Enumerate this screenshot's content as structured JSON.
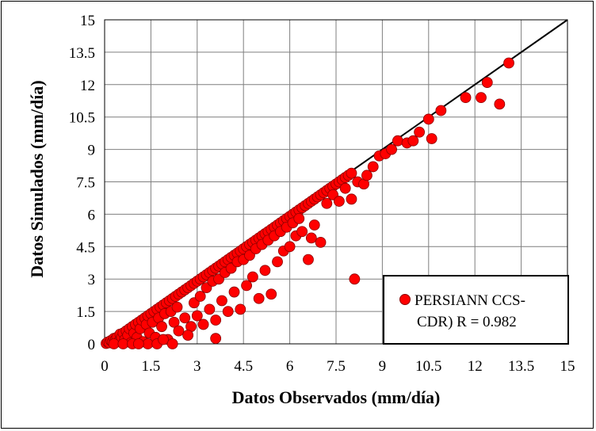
{
  "chart_data": {
    "type": "scatter",
    "xlabel": "Datos Observados (mm/día)",
    "ylabel": "Datos Simulados (mm/día)",
    "xlim": [
      0,
      15
    ],
    "ylim": [
      0,
      15
    ],
    "xticks": [
      "0",
      "1.5",
      "3",
      "4.5",
      "6",
      "7.5",
      "9",
      "10.5",
      "12",
      "13.5",
      "15"
    ],
    "yticks": [
      "0",
      "1.5",
      "3",
      "4.5",
      "6",
      "7.5",
      "9",
      "10.5",
      "12",
      "13.5",
      "15"
    ],
    "grid": true,
    "legend_position": "bottom-right",
    "reference_line": {
      "type": "1:1",
      "from": [
        0,
        0
      ],
      "to": [
        15,
        15
      ],
      "color": "#000000"
    },
    "series": [
      {
        "name": "PERSIANN CCS-CDR) R = 0.982",
        "color": "#ff0000",
        "edge_color": "#8b0000",
        "points": [
          [
            0.05,
            0.02
          ],
          [
            0.1,
            0.08
          ],
          [
            0.15,
            0.05
          ],
          [
            0.2,
            0.15
          ],
          [
            0.25,
            0.1
          ],
          [
            0.3,
            0.25
          ],
          [
            0.35,
            0.2
          ],
          [
            0.4,
            0.3
          ],
          [
            0.45,
            0.1
          ],
          [
            0.5,
            0.45
          ],
          [
            0.55,
            0.3
          ],
          [
            0.6,
            0.5
          ],
          [
            0.65,
            0.2
          ],
          [
            0.7,
            0.6
          ],
          [
            0.75,
            0.4
          ],
          [
            0.8,
            0.7
          ],
          [
            0.85,
            0.05
          ],
          [
            0.9,
            0.8
          ],
          [
            0.95,
            0.5
          ],
          [
            1.0,
            0.9
          ],
          [
            1.05,
            0.3
          ],
          [
            1.1,
            1.0
          ],
          [
            1.15,
            0.7
          ],
          [
            1.2,
            1.1
          ],
          [
            1.25,
            0.1
          ],
          [
            1.3,
            1.2
          ],
          [
            1.35,
            0.9
          ],
          [
            1.4,
            1.3
          ],
          [
            1.45,
            0.5
          ],
          [
            1.5,
            1.4
          ],
          [
            1.55,
            1.0
          ],
          [
            1.6,
            1.5
          ],
          [
            1.65,
            0.3
          ],
          [
            1.7,
            1.6
          ],
          [
            1.75,
            1.2
          ],
          [
            1.8,
            1.7
          ],
          [
            1.85,
            0.8
          ],
          [
            1.9,
            1.8
          ],
          [
            1.95,
            1.4
          ],
          [
            2.0,
            1.9
          ],
          [
            2.05,
            0.2
          ],
          [
            2.1,
            2.0
          ],
          [
            2.15,
            1.5
          ],
          [
            2.2,
            2.1
          ],
          [
            2.25,
            1.0
          ],
          [
            2.3,
            2.2
          ],
          [
            2.35,
            1.7
          ],
          [
            2.4,
            2.3
          ],
          [
            2.5,
            2.4
          ],
          [
            2.6,
            2.5
          ],
          [
            2.7,
            2.6
          ],
          [
            2.8,
            2.7
          ],
          [
            2.9,
            2.8
          ],
          [
            3.0,
            2.9
          ],
          [
            3.1,
            3.0
          ],
          [
            3.2,
            3.1
          ],
          [
            3.3,
            3.2
          ],
          [
            3.4,
            3.3
          ],
          [
            3.5,
            3.4
          ],
          [
            3.6,
            3.5
          ],
          [
            3.7,
            3.6
          ],
          [
            3.8,
            3.7
          ],
          [
            3.9,
            3.8
          ],
          [
            4.0,
            3.9
          ],
          [
            4.1,
            4.0
          ],
          [
            4.2,
            4.1
          ],
          [
            4.3,
            4.2
          ],
          [
            4.4,
            4.3
          ],
          [
            4.5,
            4.4
          ],
          [
            4.6,
            4.5
          ],
          [
            4.7,
            4.6
          ],
          [
            4.8,
            4.7
          ],
          [
            4.9,
            4.8
          ],
          [
            5.0,
            4.9
          ],
          [
            5.1,
            5.0
          ],
          [
            5.2,
            5.1
          ],
          [
            5.3,
            5.2
          ],
          [
            5.4,
            5.3
          ],
          [
            5.5,
            5.4
          ],
          [
            5.6,
            5.5
          ],
          [
            5.7,
            5.6
          ],
          [
            5.8,
            5.7
          ],
          [
            5.9,
            5.8
          ],
          [
            6.0,
            5.9
          ],
          [
            6.1,
            6.0
          ],
          [
            6.2,
            6.1
          ],
          [
            6.3,
            6.2
          ],
          [
            6.4,
            6.3
          ],
          [
            6.5,
            6.4
          ],
          [
            6.6,
            6.5
          ],
          [
            6.7,
            6.6
          ],
          [
            6.8,
            6.7
          ],
          [
            6.9,
            6.8
          ],
          [
            7.0,
            6.9
          ],
          [
            7.1,
            7.0
          ],
          [
            7.2,
            7.1
          ],
          [
            7.3,
            7.2
          ],
          [
            7.4,
            7.3
          ],
          [
            7.5,
            7.4
          ],
          [
            7.6,
            7.5
          ],
          [
            7.7,
            7.6
          ],
          [
            7.8,
            7.7
          ],
          [
            7.9,
            7.8
          ],
          [
            8.0,
            7.9
          ],
          [
            2.6,
            1.2
          ],
          [
            2.8,
            0.8
          ],
          [
            2.9,
            1.9
          ],
          [
            3.0,
            1.3
          ],
          [
            3.1,
            2.2
          ],
          [
            3.2,
            0.9
          ],
          [
            3.3,
            2.6
          ],
          [
            3.4,
            1.6
          ],
          [
            3.5,
            2.9
          ],
          [
            3.6,
            1.1
          ],
          [
            3.7,
            3.0
          ],
          [
            3.8,
            2.0
          ],
          [
            3.9,
            3.3
          ],
          [
            4.0,
            1.5
          ],
          [
            4.1,
            3.5
          ],
          [
            4.2,
            2.4
          ],
          [
            4.3,
            3.8
          ],
          [
            4.4,
            1.6
          ],
          [
            4.5,
            3.9
          ],
          [
            4.6,
            2.7
          ],
          [
            4.7,
            4.1
          ],
          [
            4.8,
            3.1
          ],
          [
            4.9,
            4.4
          ],
          [
            5.0,
            2.1
          ],
          [
            5.1,
            4.6
          ],
          [
            5.2,
            3.4
          ],
          [
            5.3,
            4.8
          ],
          [
            5.4,
            2.3
          ],
          [
            5.5,
            5.0
          ],
          [
            5.6,
            3.8
          ],
          [
            5.7,
            5.2
          ],
          [
            5.8,
            4.3
          ],
          [
            5.9,
            5.4
          ],
          [
            6.0,
            4.5
          ],
          [
            6.1,
            5.6
          ],
          [
            6.2,
            5.0
          ],
          [
            6.3,
            5.8
          ],
          [
            6.4,
            5.2
          ],
          [
            6.6,
            3.9
          ],
          [
            6.7,
            4.9
          ],
          [
            6.8,
            5.5
          ],
          [
            7.0,
            4.7
          ],
          [
            7.2,
            6.5
          ],
          [
            7.4,
            6.9
          ],
          [
            7.6,
            6.6
          ],
          [
            7.8,
            7.2
          ],
          [
            8.0,
            6.7
          ],
          [
            8.2,
            7.5
          ],
          [
            8.4,
            7.4
          ],
          [
            8.5,
            7.8
          ],
          [
            8.7,
            8.2
          ],
          [
            8.9,
            8.7
          ],
          [
            8.1,
            3.0
          ],
          [
            3.6,
            0.25
          ],
          [
            2.2,
            0.0
          ],
          [
            1.4,
            0.0
          ],
          [
            9.1,
            8.8
          ],
          [
            9.3,
            9.0
          ],
          [
            9.5,
            9.4
          ],
          [
            9.8,
            9.3
          ],
          [
            10.0,
            9.4
          ],
          [
            10.2,
            9.8
          ],
          [
            10.5,
            10.4
          ],
          [
            10.6,
            9.5
          ],
          [
            10.9,
            10.8
          ],
          [
            11.7,
            11.4
          ],
          [
            12.2,
            11.4
          ],
          [
            12.4,
            12.1
          ],
          [
            12.8,
            11.1
          ],
          [
            13.1,
            13.0
          ],
          [
            0.3,
            0.0
          ],
          [
            0.6,
            0.0
          ],
          [
            0.9,
            0.0
          ],
          [
            1.1,
            0.0
          ],
          [
            1.7,
            0.0
          ],
          [
            1.9,
            0.2
          ],
          [
            2.4,
            0.6
          ],
          [
            2.7,
            0.4
          ]
        ]
      }
    ]
  }
}
